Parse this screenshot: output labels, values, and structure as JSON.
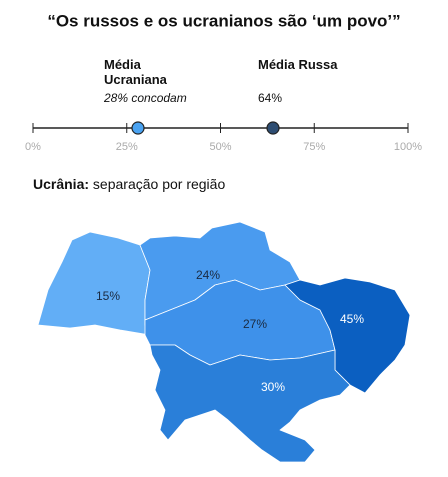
{
  "chart_data": [
    {
      "type": "dot",
      "title": "“Os russos e os ucranianos são ‘um povo’”",
      "xlim": [
        0,
        100
      ],
      "xticks": [
        {
          "value": 0,
          "label": "0%"
        },
        {
          "value": 25,
          "label": "25%"
        },
        {
          "value": 50,
          "label": "50%"
        },
        {
          "value": 75,
          "label": "75%"
        },
        {
          "value": 100,
          "label": "100%"
        }
      ],
      "series": [
        {
          "name": "Média Ucraniana",
          "color": "#4aa3f2",
          "values": [
            28
          ],
          "value_labels": [
            "28% concodam"
          ]
        },
        {
          "name": "Média Russa",
          "color": "#2e4d72",
          "values": [
            64
          ],
          "value_labels": [
            "64%"
          ]
        }
      ]
    },
    {
      "type": "choropleth",
      "title_bold": "Ucrânia:",
      "title": "separação por região",
      "categories": [
        null,
        null,
        null,
        null,
        null
      ],
      "values": [
        15,
        24,
        27,
        45,
        30
      ],
      "value_labels": [
        "15%",
        "24%",
        "27%",
        "45%",
        "30%"
      ],
      "colors": [
        "#62aef6",
        "#4a9bef",
        "#3e91ea",
        "#0b5fc1",
        "#2a7fd9"
      ]
    }
  ]
}
